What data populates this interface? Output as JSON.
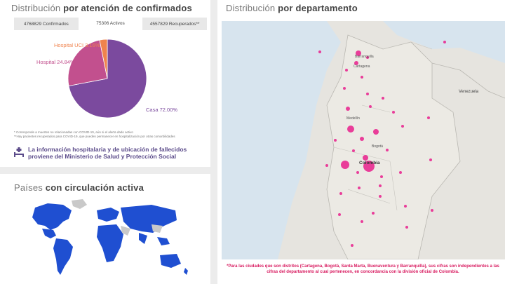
{
  "confirmed_panel": {
    "title_prefix": "Distribución",
    "title_bold": "por atención de confirmados",
    "tabs": [
      {
        "label": "4768829 Confirmados",
        "active": false
      },
      {
        "label": "75306 Activos",
        "active": true
      },
      {
        "label": "4557829 Recuperados**",
        "active": false
      }
    ],
    "chart_data": {
      "type": "pie",
      "slices": [
        {
          "label": "Casa 72.00%",
          "value": 72.0,
          "color": "#7b4a9e"
        },
        {
          "label": "Hospital 24.84%",
          "value": 24.84,
          "color": "#c2508e"
        },
        {
          "label": "Hospital UCI 3.16%",
          "value": 3.16,
          "color": "#f0834d"
        }
      ]
    },
    "footnotes": [
      "* Corresponde a muertes no relacionadas con COVID-19, aún si el alerta dado activo",
      "**Hay pacientes recuperados para COVID-19, que pueden permanecer en hospitalización por otras comorbilidades"
    ],
    "info_text": "La información hospitalaria y de ubicación de fallecidos proviene del Ministerio de Salud y Protección Social",
    "info_icon": "hospital-bed-icon"
  },
  "countries_panel": {
    "title_prefix": "Países",
    "title_bold": "con circulación activa",
    "map_color_active": "#1f4fd1",
    "map_color_inactive": "#c9c9c9"
  },
  "department_panel": {
    "title_prefix": "Distribución",
    "title_bold": "por departamento",
    "map_labels": [
      "Barranquilla",
      "Cartagena",
      "Medellín",
      "Bogotá",
      "Colombia",
      "Venezuela"
    ],
    "footnote": "*Para las ciudades que son distritos (Cartagena, Bogotá, Santa Marta, Buenaventura y Barranquilla), sus cifras son independientes a las cifras del departamento al cual pertenecen, en concordancia con la división oficial de Colombia.",
    "marker_color": "#e91e8c"
  }
}
